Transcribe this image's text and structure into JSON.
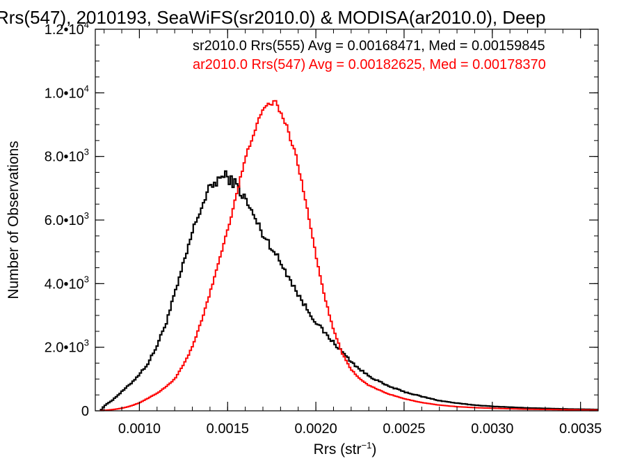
{
  "chart_data": {
    "type": "line",
    "title": "Rrs(547), 2010193, SeaWiFS(sr2010.0) & MODISA(ar2010.0), Deep",
    "xlabel": "Rrs (str",
    "xlabel_sup": "−1",
    "xlabel_tail": ")",
    "ylabel": "Number of Observations",
    "xlim": [
      0.00075,
      0.0036
    ],
    "ylim": [
      0,
      12000
    ],
    "grid": false,
    "legend_placement": "top-right",
    "x_ticks": [
      {
        "value": 0.001,
        "label": "0.0010"
      },
      {
        "value": 0.0015,
        "label": "0.0015"
      },
      {
        "value": 0.002,
        "label": "0.0020"
      },
      {
        "value": 0.0025,
        "label": "0.0025"
      },
      {
        "value": 0.003,
        "label": "0.0030"
      },
      {
        "value": 0.0035,
        "label": "0.0035"
      }
    ],
    "y_ticks": [
      {
        "value": 0,
        "mant": "0",
        "exp": ""
      },
      {
        "value": 2000,
        "mant": "2.0•10",
        "exp": "3"
      },
      {
        "value": 4000,
        "mant": "4.0•10",
        "exp": "3"
      },
      {
        "value": 6000,
        "mant": "6.0•10",
        "exp": "3"
      },
      {
        "value": 8000,
        "mant": "8.0•10",
        "exp": "3"
      },
      {
        "value": 10000,
        "mant": "1.0•10",
        "exp": "4"
      },
      {
        "value": 12000,
        "mant": "1.2•10",
        "exp": "4"
      }
    ],
    "x_minor_step": 0.0001,
    "y_minor_step": 500,
    "series": [
      {
        "name": "sr2010.0 Rrs(555) Avg = 0.00168471, Med = 0.00159845",
        "color": "#000000",
        "x": [
          0.00078,
          0.0008,
          0.00085,
          0.0009,
          0.00095,
          0.001,
          0.00105,
          0.0011,
          0.00115,
          0.0012,
          0.00125,
          0.0013,
          0.00135,
          0.0014,
          0.00145,
          0.00148,
          0.0015,
          0.00155,
          0.0016,
          0.00165,
          0.0017,
          0.00175,
          0.0018,
          0.00185,
          0.0019,
          0.00195,
          0.002,
          0.00205,
          0.0021,
          0.00215,
          0.0022,
          0.00225,
          0.0023,
          0.0024,
          0.0025,
          0.0026,
          0.0027,
          0.0028,
          0.0029,
          0.003,
          0.0032,
          0.0034,
          0.0036
        ],
        "y": [
          0,
          150,
          350,
          600,
          850,
          1150,
          1500,
          2050,
          2750,
          3650,
          4600,
          5600,
          6400,
          7000,
          7300,
          7380,
          7350,
          7100,
          6650,
          6100,
          5550,
          5150,
          4650,
          4200,
          3650,
          3200,
          2800,
          2450,
          2150,
          1850,
          1550,
          1300,
          1100,
          800,
          600,
          450,
          320,
          240,
          180,
          140,
          90,
          60,
          40
        ]
      },
      {
        "name": "ar2010.0 Rrs(547) Avg = 0.00182625, Med = 0.00178370",
        "color": "#ff0000",
        "x": [
          0.00078,
          0.00085,
          0.0009,
          0.00095,
          0.001,
          0.00105,
          0.0011,
          0.00115,
          0.0012,
          0.00125,
          0.0013,
          0.00135,
          0.0014,
          0.00145,
          0.0015,
          0.00155,
          0.0016,
          0.00165,
          0.0017,
          0.00173,
          0.00175,
          0.00178,
          0.0018,
          0.00185,
          0.0019,
          0.00195,
          0.002,
          0.00205,
          0.0021,
          0.00215,
          0.0022,
          0.00225,
          0.0023,
          0.0024,
          0.0025,
          0.0026,
          0.0027,
          0.0028,
          0.0029,
          0.003,
          0.0032,
          0.0034,
          0.0036
        ],
        "y": [
          0,
          40,
          80,
          150,
          250,
          400,
          550,
          750,
          1000,
          1450,
          2000,
          2800,
          3700,
          4700,
          5700,
          6800,
          7900,
          8800,
          9400,
          9650,
          9700,
          9650,
          9400,
          8700,
          7750,
          6400,
          4900,
          3600,
          2550,
          1800,
          1300,
          1000,
          800,
          550,
          380,
          260,
          180,
          130,
          100,
          80,
          50,
          35,
          25
        ]
      }
    ]
  }
}
